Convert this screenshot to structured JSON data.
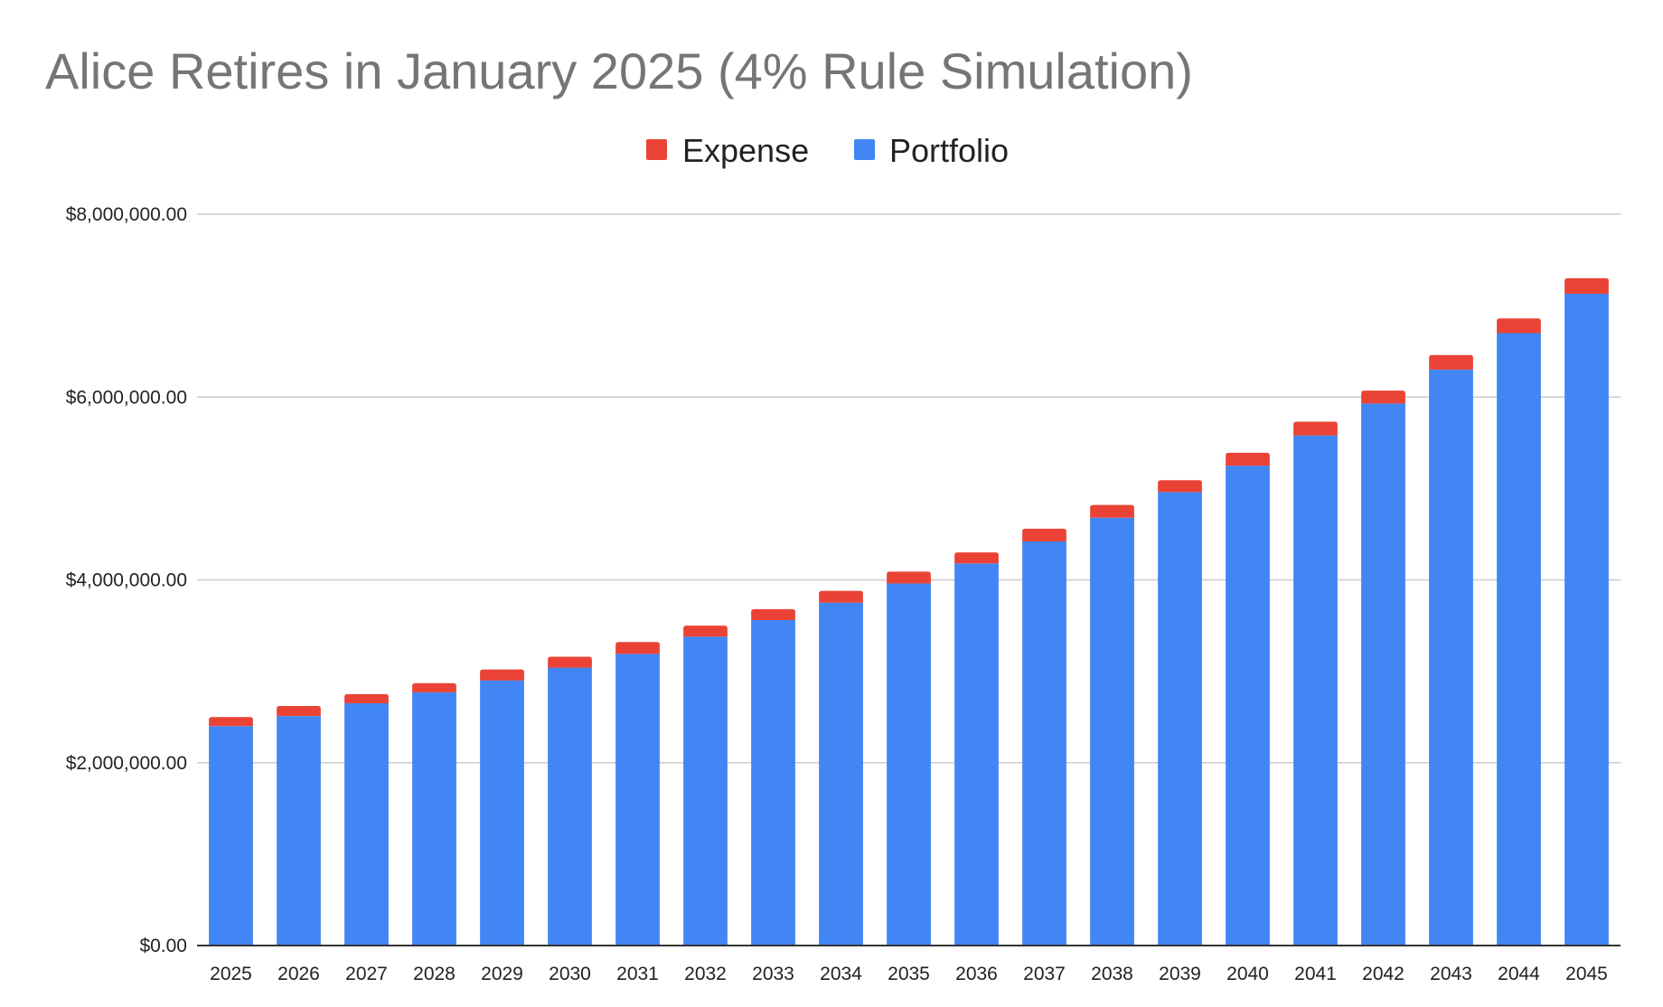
{
  "colors": {
    "expense": "#EA4335",
    "portfolio": "#4285F4",
    "title": "#757575",
    "grid": "#cccccc"
  },
  "chart_data": {
    "type": "bar",
    "stacked": true,
    "title": "Alice Retires in January 2025 (4% Rule Simulation)",
    "xlabel": "",
    "ylabel": "",
    "ylim": [
      0,
      8000000
    ],
    "y_ticks": [
      0,
      2000000,
      4000000,
      6000000,
      8000000
    ],
    "y_tick_labels": [
      "$0.00",
      "$2,000,000.00",
      "$4,000,000.00",
      "$6,000,000.00",
      "$8,000,000.00"
    ],
    "grid": true,
    "legend_position": "top-center",
    "legend": [
      "Expense",
      "Portfolio"
    ],
    "categories": [
      "2025",
      "2026",
      "2027",
      "2028",
      "2029",
      "2030",
      "2031",
      "2032",
      "2033",
      "2034",
      "2035",
      "2036",
      "2037",
      "2038",
      "2039",
      "2040",
      "2041",
      "2042",
      "2043",
      "2044",
      "2045"
    ],
    "series": [
      {
        "name": "Portfolio",
        "color": "#4285F4",
        "values": [
          2400000,
          2510000,
          2650000,
          2770000,
          2900000,
          3040000,
          3190000,
          3380000,
          3560000,
          3750000,
          3960000,
          4180000,
          4420000,
          4680000,
          4960000,
          5250000,
          5580000,
          5930000,
          6300000,
          6700000,
          7130000
        ]
      },
      {
        "name": "Expense",
        "color": "#EA4335",
        "values": [
          100000,
          110000,
          100000,
          100000,
          120000,
          120000,
          130000,
          120000,
          120000,
          130000,
          130000,
          120000,
          140000,
          140000,
          130000,
          140000,
          150000,
          140000,
          160000,
          160000,
          170000
        ]
      }
    ]
  }
}
